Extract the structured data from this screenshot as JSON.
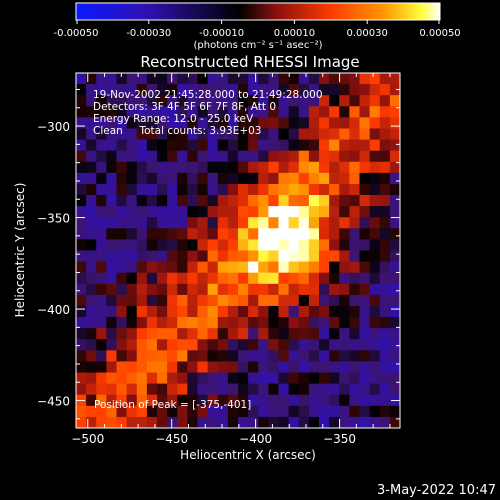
{
  "colorbar": {
    "ticks": [
      "-0.00050",
      "-0.00030",
      "-0.00010",
      "0.00010",
      "0.00030",
      "0.00050"
    ],
    "unit_label": "(photons cm⁻² s⁻¹ asec⁻²)",
    "range": [
      -0.0005,
      0.0005
    ]
  },
  "plot": {
    "title": "Reconstructed RHESSI Image",
    "info_lines": [
      "19-Nov-2002 21:45:28.000 to 21:49:28.000",
      "Detectors: 3F 4F 5F 6F 7F 8F, Att 0",
      "Energy Range: 12.0 - 25.0 keV",
      "Clean     Total counts: 3.93E+03"
    ],
    "peak_label": "Position of Peak = [-375,-401]",
    "footer_date": "3-May-2022 10:47"
  },
  "chart_data": {
    "type": "heatmap",
    "title": "Reconstructed RHESSI Image",
    "xlabel": "Heliocentric X (arcsec)",
    "ylabel": "Heliocentric Y (arcsec)",
    "xlim": [
      -507,
      -314
    ],
    "ylim": [
      -465,
      -271
    ],
    "xticks": [
      -500,
      -450,
      -400,
      -350
    ],
    "yticks": [
      -300,
      -350,
      -400,
      -450
    ],
    "peak_position": [
      -375,
      -401
    ],
    "colormap": [
      "#0a1aff",
      "#2a0a8a",
      "#000000",
      "#8a1010",
      "#ff3a00",
      "#ff9a00",
      "#ffffff"
    ],
    "grid_size": [
      32,
      32
    ]
  }
}
